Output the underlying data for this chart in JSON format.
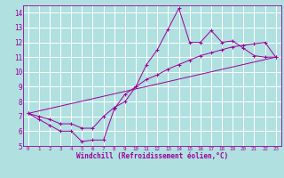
{
  "background_color": "#b0e0e0",
  "grid_color": "#ffffff",
  "line_color": "#9b009b",
  "xlabel": "Windchill (Refroidissement éolien,°C)",
  "xlim": [
    -0.5,
    23.5
  ],
  "ylim": [
    5,
    14.5
  ],
  "xticks": [
    0,
    1,
    2,
    3,
    4,
    5,
    6,
    7,
    8,
    9,
    10,
    11,
    12,
    13,
    14,
    15,
    16,
    17,
    18,
    19,
    20,
    21,
    22,
    23
  ],
  "yticks": [
    5,
    6,
    7,
    8,
    9,
    10,
    11,
    12,
    13,
    14
  ],
  "series1_x": [
    0,
    1,
    2,
    3,
    4,
    5,
    6,
    7,
    8,
    9,
    10,
    11,
    12,
    13,
    14,
    15,
    16,
    17,
    18,
    19,
    20,
    21,
    22,
    23
  ],
  "series1_y": [
    7.2,
    6.8,
    6.4,
    6.0,
    6.0,
    5.3,
    5.4,
    5.4,
    7.5,
    8.5,
    9.0,
    10.5,
    11.5,
    12.9,
    14.3,
    12.0,
    12.0,
    12.8,
    12.0,
    12.1,
    11.6,
    11.1,
    11.0,
    11.0
  ],
  "series2_x": [
    0,
    1,
    2,
    3,
    4,
    5,
    6,
    7,
    8,
    9,
    10,
    11,
    12,
    13,
    14,
    15,
    16,
    17,
    18,
    19,
    20,
    21,
    22,
    23
  ],
  "series2_y": [
    7.2,
    7.0,
    6.8,
    6.5,
    6.5,
    6.2,
    6.2,
    7.0,
    7.6,
    8.0,
    9.0,
    9.5,
    9.8,
    10.2,
    10.5,
    10.8,
    11.1,
    11.3,
    11.5,
    11.7,
    11.8,
    11.9,
    12.0,
    11.0
  ],
  "series3_x": [
    0,
    23
  ],
  "series3_y": [
    7.2,
    11.0
  ]
}
